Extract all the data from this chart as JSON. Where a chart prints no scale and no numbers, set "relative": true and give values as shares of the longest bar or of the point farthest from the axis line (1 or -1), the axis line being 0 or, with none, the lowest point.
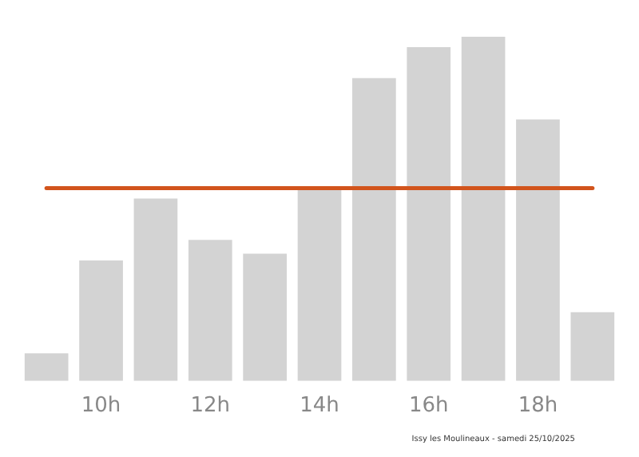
{
  "chart_data": {
    "type": "bar",
    "relative": true,
    "categories": [
      null,
      "10h",
      null,
      "12h",
      null,
      "14h",
      null,
      "16h",
      null,
      "18h",
      null
    ],
    "values": [
      0.08,
      0.35,
      0.53,
      0.41,
      0.37,
      0.56,
      0.88,
      0.97,
      1,
      0.76,
      0.2
    ],
    "color": "#d3d3d3",
    "ref_lines": [
      {
        "axis": "y",
        "value": 0.56,
        "color": "#d2541c"
      }
    ],
    "annotations": [
      "Issy les Moulineaux - samedi 25/10/2025"
    ],
    "grid": false,
    "legend": false
  }
}
